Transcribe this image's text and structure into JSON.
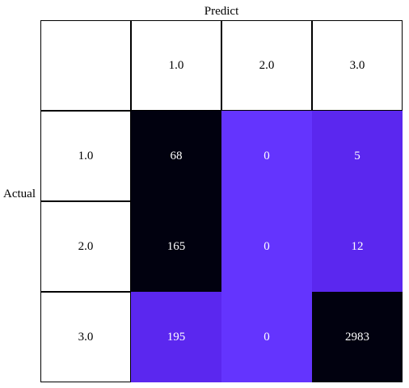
{
  "chart_data": {
    "type": "heatmap",
    "title": "",
    "xlabel": "Predict",
    "ylabel": "Actual",
    "x_categories": [
      "1.0",
      "2.0",
      "3.0"
    ],
    "y_categories": [
      "1.0",
      "2.0",
      "3.0"
    ],
    "values": [
      [
        68,
        0,
        5
      ],
      [
        165,
        0,
        12
      ],
      [
        195,
        0,
        2983
      ]
    ],
    "cell_colors": [
      [
        "#01010f",
        "#6434fe",
        "#5b27ef"
      ],
      [
        "#01010f",
        "#6434fe",
        "#5b27ef"
      ],
      [
        "#5b27ef",
        "#6434fe",
        "#01010f"
      ]
    ],
    "grid": false,
    "legend": "none"
  }
}
